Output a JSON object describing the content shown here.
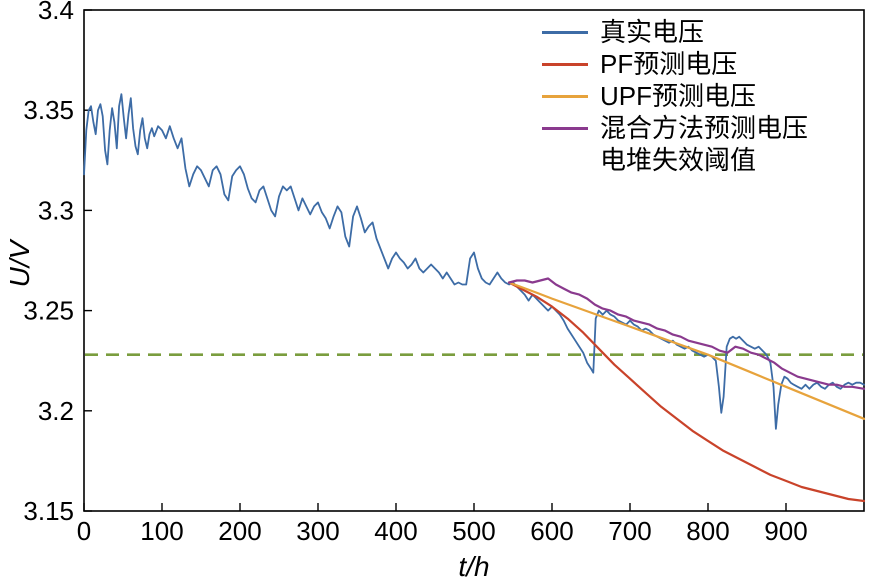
{
  "chart_data": {
    "type": "line",
    "title": "",
    "xlabel": "t/h",
    "ylabel": "U/V",
    "xlim": [
      0,
      1000
    ],
    "ylim": [
      3.15,
      3.4
    ],
    "xticks": [
      0,
      100,
      200,
      300,
      400,
      500,
      600,
      700,
      800,
      900
    ],
    "yticks": [
      3.15,
      3.2,
      3.25,
      3.3,
      3.35,
      3.4
    ],
    "ytick_labels": [
      "3.15",
      "3.2",
      "3.25",
      "3.3",
      "3.35",
      "3.4"
    ],
    "grid": false,
    "legend_position": "top-right",
    "threshold": {
      "label": "电堆失效阈值",
      "value": 3.228,
      "color": "#7A9D3E",
      "dash": true
    },
    "series": [
      {
        "name": "真实电压",
        "color": "#3D6CA6",
        "width": 1.8,
        "points": [
          [
            0,
            3.318
          ],
          [
            3,
            3.34
          ],
          [
            6,
            3.35
          ],
          [
            9,
            3.352
          ],
          [
            12,
            3.344
          ],
          [
            15,
            3.338
          ],
          [
            18,
            3.35
          ],
          [
            21,
            3.353
          ],
          [
            24,
            3.347
          ],
          [
            27,
            3.33
          ],
          [
            30,
            3.323
          ],
          [
            33,
            3.34
          ],
          [
            36,
            3.351
          ],
          [
            39,
            3.344
          ],
          [
            42,
            3.331
          ],
          [
            45,
            3.352
          ],
          [
            48,
            3.358
          ],
          [
            51,
            3.346
          ],
          [
            54,
            3.336
          ],
          [
            57,
            3.348
          ],
          [
            60,
            3.356
          ],
          [
            63,
            3.341
          ],
          [
            66,
            3.332
          ],
          [
            69,
            3.328
          ],
          [
            72,
            3.34
          ],
          [
            75,
            3.346
          ],
          [
            78,
            3.336
          ],
          [
            81,
            3.331
          ],
          [
            84,
            3.338
          ],
          [
            87,
            3.341
          ],
          [
            90,
            3.337
          ],
          [
            95,
            3.342
          ],
          [
            100,
            3.34
          ],
          [
            105,
            3.336
          ],
          [
            110,
            3.342
          ],
          [
            115,
            3.336
          ],
          [
            120,
            3.331
          ],
          [
            125,
            3.336
          ],
          [
            130,
            3.321
          ],
          [
            135,
            3.312
          ],
          [
            140,
            3.318
          ],
          [
            145,
            3.322
          ],
          [
            150,
            3.32
          ],
          [
            155,
            3.316
          ],
          [
            160,
            3.312
          ],
          [
            165,
            3.32
          ],
          [
            170,
            3.322
          ],
          [
            175,
            3.318
          ],
          [
            180,
            3.308
          ],
          [
            185,
            3.305
          ],
          [
            190,
            3.317
          ],
          [
            195,
            3.32
          ],
          [
            200,
            3.322
          ],
          [
            205,
            3.318
          ],
          [
            210,
            3.311
          ],
          [
            215,
            3.306
          ],
          [
            220,
            3.304
          ],
          [
            225,
            3.31
          ],
          [
            230,
            3.312
          ],
          [
            235,
            3.306
          ],
          [
            240,
            3.3
          ],
          [
            245,
            3.297
          ],
          [
            250,
            3.307
          ],
          [
            255,
            3.312
          ],
          [
            260,
            3.31
          ],
          [
            265,
            3.312
          ],
          [
            270,
            3.306
          ],
          [
            275,
            3.3
          ],
          [
            280,
            3.306
          ],
          [
            285,
            3.302
          ],
          [
            290,
            3.298
          ],
          [
            295,
            3.302
          ],
          [
            300,
            3.304
          ],
          [
            305,
            3.299
          ],
          [
            310,
            3.296
          ],
          [
            315,
            3.291
          ],
          [
            320,
            3.297
          ],
          [
            325,
            3.302
          ],
          [
            330,
            3.299
          ],
          [
            335,
            3.287
          ],
          [
            340,
            3.282
          ],
          [
            345,
            3.297
          ],
          [
            350,
            3.302
          ],
          [
            355,
            3.296
          ],
          [
            360,
            3.289
          ],
          [
            365,
            3.292
          ],
          [
            370,
            3.294
          ],
          [
            375,
            3.286
          ],
          [
            380,
            3.281
          ],
          [
            385,
            3.276
          ],
          [
            390,
            3.271
          ],
          [
            395,
            3.276
          ],
          [
            400,
            3.279
          ],
          [
            405,
            3.276
          ],
          [
            410,
            3.274
          ],
          [
            415,
            3.271
          ],
          [
            420,
            3.273
          ],
          [
            425,
            3.276
          ],
          [
            430,
            3.271
          ],
          [
            435,
            3.269
          ],
          [
            440,
            3.271
          ],
          [
            445,
            3.273
          ],
          [
            450,
            3.271
          ],
          [
            455,
            3.269
          ],
          [
            460,
            3.266
          ],
          [
            465,
            3.269
          ],
          [
            470,
            3.266
          ],
          [
            475,
            3.263
          ],
          [
            480,
            3.264
          ],
          [
            485,
            3.263
          ],
          [
            490,
            3.263
          ],
          [
            495,
            3.276
          ],
          [
            500,
            3.279
          ],
          [
            505,
            3.271
          ],
          [
            510,
            3.266
          ],
          [
            515,
            3.264
          ],
          [
            520,
            3.263
          ],
          [
            525,
            3.266
          ],
          [
            530,
            3.269
          ],
          [
            535,
            3.266
          ],
          [
            540,
            3.264
          ],
          [
            545,
            3.263
          ],
          [
            550,
            3.264
          ],
          [
            555,
            3.262
          ],
          [
            560,
            3.26
          ],
          [
            565,
            3.258
          ],
          [
            570,
            3.255
          ],
          [
            575,
            3.258
          ],
          [
            580,
            3.256
          ],
          [
            585,
            3.254
          ],
          [
            590,
            3.252
          ],
          [
            595,
            3.25
          ],
          [
            600,
            3.252
          ],
          [
            605,
            3.25
          ],
          [
            610,
            3.248
          ],
          [
            615,
            3.245
          ],
          [
            620,
            3.241
          ],
          [
            625,
            3.238
          ],
          [
            630,
            3.235
          ],
          [
            635,
            3.232
          ],
          [
            640,
            3.229
          ],
          [
            645,
            3.224
          ],
          [
            650,
            3.221
          ],
          [
            653,
            3.219
          ],
          [
            656,
            3.246
          ],
          [
            660,
            3.25
          ],
          [
            665,
            3.248
          ],
          [
            670,
            3.25
          ],
          [
            675,
            3.248
          ],
          [
            680,
            3.247
          ],
          [
            685,
            3.245
          ],
          [
            690,
            3.244
          ],
          [
            695,
            3.243
          ],
          [
            700,
            3.245
          ],
          [
            705,
            3.243
          ],
          [
            710,
            3.242
          ],
          [
            715,
            3.24
          ],
          [
            720,
            3.241
          ],
          [
            725,
            3.24
          ],
          [
            730,
            3.238
          ],
          [
            735,
            3.237
          ],
          [
            740,
            3.236
          ],
          [
            745,
            3.235
          ],
          [
            750,
            3.234
          ],
          [
            755,
            3.235
          ],
          [
            760,
            3.233
          ],
          [
            765,
            3.232
          ],
          [
            770,
            3.231
          ],
          [
            775,
            3.232
          ],
          [
            780,
            3.23
          ],
          [
            785,
            3.229
          ],
          [
            790,
            3.228
          ],
          [
            795,
            3.227
          ],
          [
            800,
            3.228
          ],
          [
            805,
            3.227
          ],
          [
            810,
            3.225
          ],
          [
            814,
            3.212
          ],
          [
            817,
            3.199
          ],
          [
            820,
            3.207
          ],
          [
            824,
            3.232
          ],
          [
            828,
            3.236
          ],
          [
            832,
            3.237
          ],
          [
            836,
            3.236
          ],
          [
            840,
            3.237
          ],
          [
            845,
            3.235
          ],
          [
            850,
            3.233
          ],
          [
            855,
            3.232
          ],
          [
            860,
            3.231
          ],
          [
            865,
            3.232
          ],
          [
            870,
            3.23
          ],
          [
            875,
            3.228
          ],
          [
            880,
            3.224
          ],
          [
            884,
            3.212
          ],
          [
            887,
            3.191
          ],
          [
            890,
            3.203
          ],
          [
            894,
            3.213
          ],
          [
            898,
            3.217
          ],
          [
            902,
            3.216
          ],
          [
            906,
            3.214
          ],
          [
            910,
            3.213
          ],
          [
            915,
            3.212
          ],
          [
            920,
            3.211
          ],
          [
            925,
            3.213
          ],
          [
            930,
            3.211
          ],
          [
            935,
            3.213
          ],
          [
            940,
            3.214
          ],
          [
            945,
            3.212
          ],
          [
            950,
            3.211
          ],
          [
            955,
            3.213
          ],
          [
            960,
            3.214
          ],
          [
            965,
            3.212
          ],
          [
            970,
            3.211
          ],
          [
            975,
            3.213
          ],
          [
            980,
            3.214
          ],
          [
            985,
            3.213
          ],
          [
            990,
            3.214
          ],
          [
            995,
            3.214
          ],
          [
            1000,
            3.213
          ]
        ]
      },
      {
        "name": "PF预测电压",
        "color": "#C9432A",
        "width": 2.2,
        "points": [
          [
            545,
            3.264
          ],
          [
            560,
            3.261
          ],
          [
            580,
            3.257
          ],
          [
            600,
            3.252
          ],
          [
            620,
            3.246
          ],
          [
            640,
            3.239
          ],
          [
            660,
            3.231
          ],
          [
            680,
            3.223
          ],
          [
            700,
            3.216
          ],
          [
            720,
            3.209
          ],
          [
            740,
            3.202
          ],
          [
            760,
            3.196
          ],
          [
            780,
            3.19
          ],
          [
            800,
            3.185
          ],
          [
            820,
            3.18
          ],
          [
            840,
            3.176
          ],
          [
            860,
            3.172
          ],
          [
            880,
            3.168
          ],
          [
            900,
            3.165
          ],
          [
            920,
            3.162
          ],
          [
            940,
            3.16
          ],
          [
            960,
            3.158
          ],
          [
            980,
            3.156
          ],
          [
            1000,
            3.155
          ]
        ]
      },
      {
        "name": "UPF预测电压",
        "color": "#E7A33C",
        "width": 2.2,
        "points": [
          [
            545,
            3.264
          ],
          [
            580,
            3.259
          ],
          [
            600,
            3.256
          ],
          [
            650,
            3.249
          ],
          [
            700,
            3.242
          ],
          [
            750,
            3.235
          ],
          [
            800,
            3.228
          ],
          [
            850,
            3.22
          ],
          [
            900,
            3.212
          ],
          [
            950,
            3.204
          ],
          [
            1000,
            3.196
          ]
        ]
      },
      {
        "name": "混合方法预测电压",
        "color": "#8A3A8E",
        "width": 2.2,
        "points": [
          [
            545,
            3.264
          ],
          [
            555,
            3.265
          ],
          [
            565,
            3.265
          ],
          [
            575,
            3.264
          ],
          [
            585,
            3.265
          ],
          [
            595,
            3.266
          ],
          [
            605,
            3.263
          ],
          [
            615,
            3.261
          ],
          [
            625,
            3.259
          ],
          [
            635,
            3.258
          ],
          [
            645,
            3.256
          ],
          [
            655,
            3.253
          ],
          [
            665,
            3.251
          ],
          [
            675,
            3.25
          ],
          [
            685,
            3.248
          ],
          [
            695,
            3.247
          ],
          [
            705,
            3.245
          ],
          [
            715,
            3.244
          ],
          [
            725,
            3.243
          ],
          [
            735,
            3.241
          ],
          [
            745,
            3.24
          ],
          [
            755,
            3.238
          ],
          [
            765,
            3.237
          ],
          [
            775,
            3.235
          ],
          [
            785,
            3.234
          ],
          [
            795,
            3.233
          ],
          [
            805,
            3.232
          ],
          [
            815,
            3.23
          ],
          [
            825,
            3.229
          ],
          [
            835,
            3.232
          ],
          [
            845,
            3.231
          ],
          [
            855,
            3.229
          ],
          [
            865,
            3.228
          ],
          [
            875,
            3.226
          ],
          [
            885,
            3.224
          ],
          [
            895,
            3.221
          ],
          [
            905,
            3.219
          ],
          [
            915,
            3.217
          ],
          [
            925,
            3.216
          ],
          [
            935,
            3.215
          ],
          [
            945,
            3.214
          ],
          [
            955,
            3.213
          ],
          [
            965,
            3.213
          ],
          [
            975,
            3.212
          ],
          [
            985,
            3.212
          ],
          [
            1000,
            3.211
          ]
        ]
      }
    ]
  }
}
